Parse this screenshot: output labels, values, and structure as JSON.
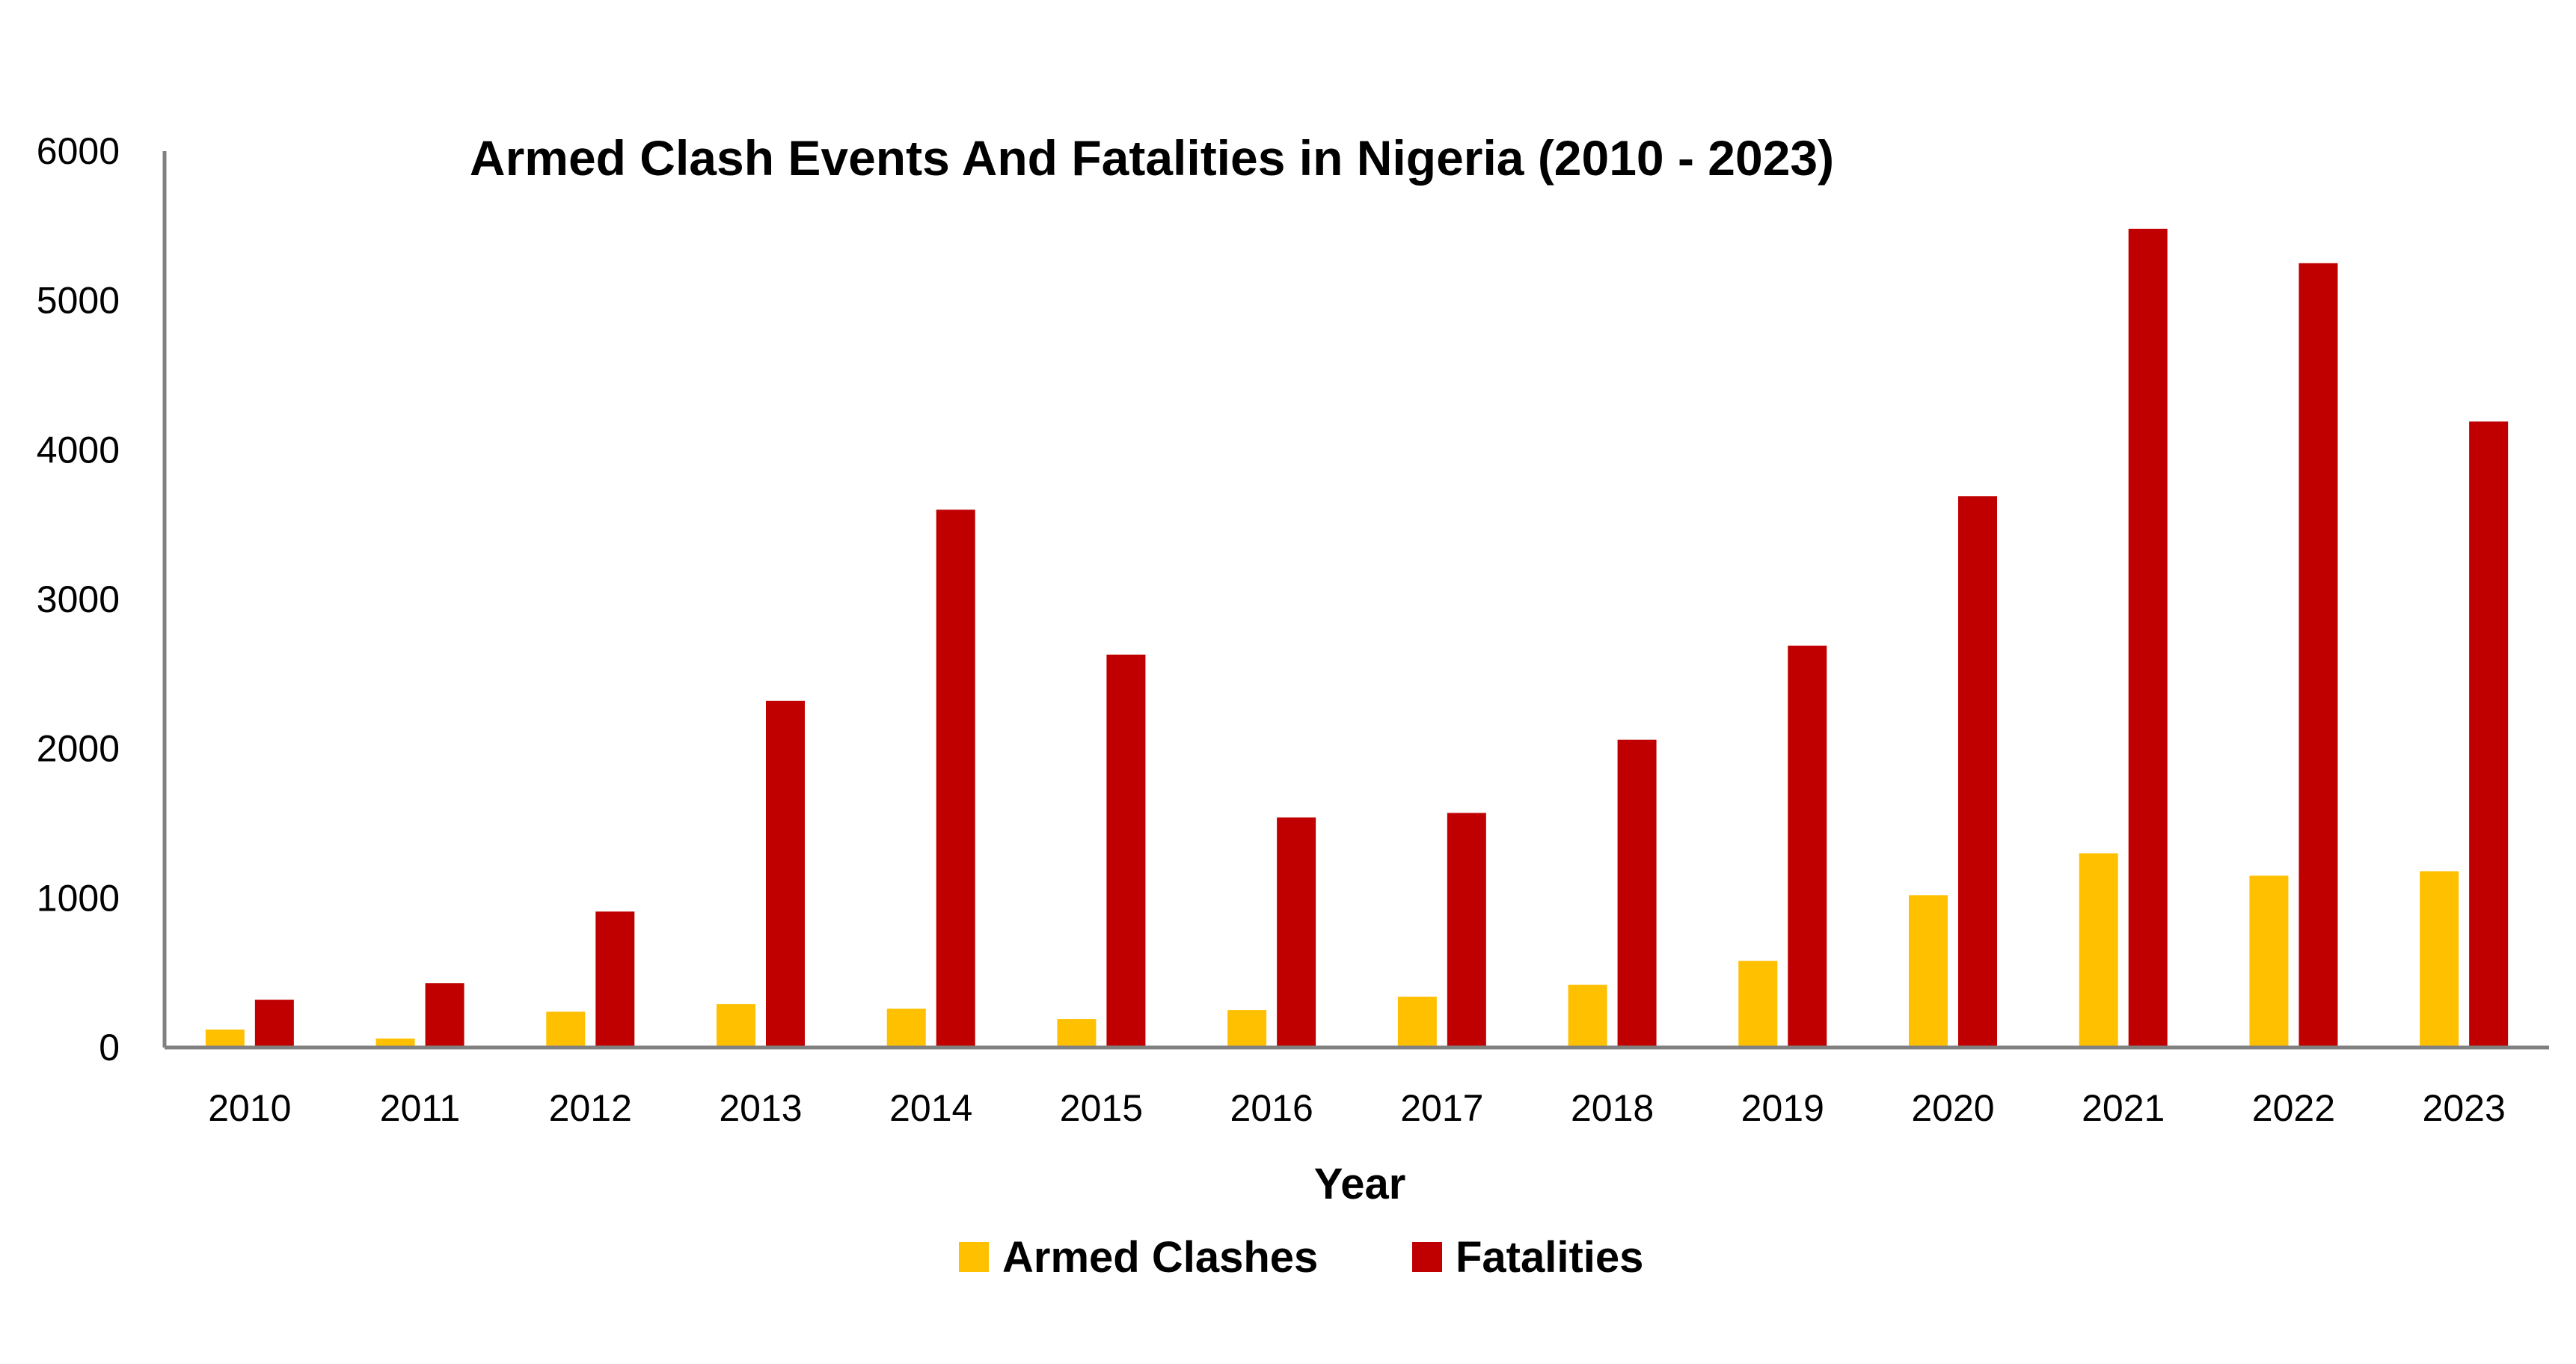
{
  "chart_data": {
    "type": "bar",
    "title": "Armed Clash Events And Fatalities in Nigeria (2010 - 2023)",
    "xlabel": "Year",
    "ylabel": "",
    "ylim": [
      0,
      6000
    ],
    "yticks": [
      0,
      1000,
      2000,
      3000,
      4000,
      5000,
      6000
    ],
    "grid": false,
    "legend_position": "bottom",
    "categories": [
      "2010",
      "2011",
      "2012",
      "2013",
      "2014",
      "2015",
      "2016",
      "2017",
      "2018",
      "2019",
      "2020",
      "2021",
      "2022",
      "2023"
    ],
    "series": [
      {
        "name": "Armed Clashes",
        "color": "#FFC000",
        "values": [
          120,
          60,
          240,
          290,
          260,
          190,
          250,
          340,
          420,
          580,
          1020,
          1300,
          1150,
          1180
        ]
      },
      {
        "name": "Fatalities",
        "color": "#C00000",
        "values": [
          320,
          430,
          910,
          2320,
          3600,
          2630,
          1540,
          1570,
          2060,
          2690,
          3690,
          5480,
          5250,
          4190
        ]
      }
    ],
    "axis_color": "#808080"
  }
}
